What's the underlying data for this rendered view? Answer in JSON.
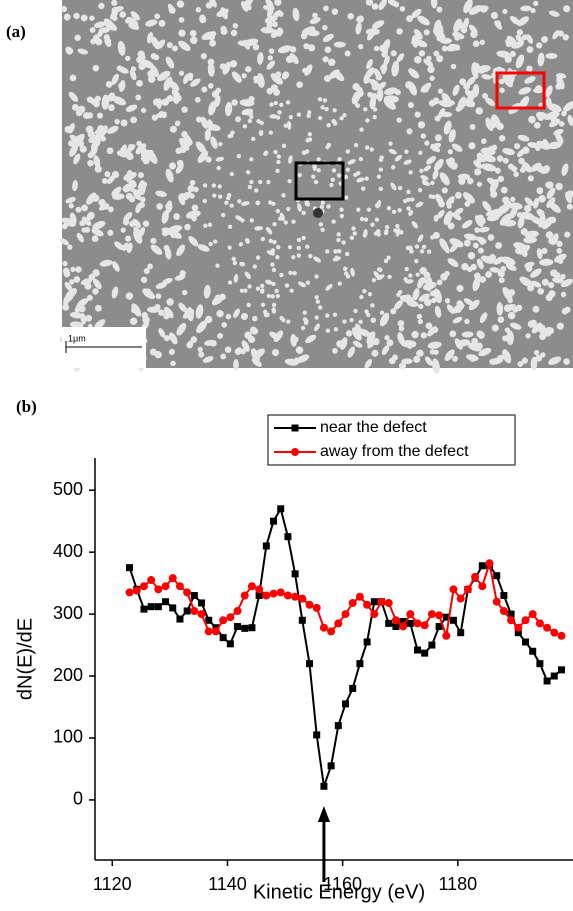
{
  "figure_labels": {
    "a": "(a)",
    "b": "(b)"
  },
  "sem_image": {
    "scale_bar": "1μm"
  },
  "chart_data": {
    "type": "line",
    "y_label": "dN(E)/dE",
    "x_label": "Kinetic Energy (eV)",
    "x": [
      1123,
      1124.25,
      1125.5,
      1126.75,
      1128,
      1129.25,
      1130.5,
      1131.75,
      1133,
      1134.25,
      1135.5,
      1136.75,
      1138,
      1139.25,
      1140.5,
      1141.75,
      1143,
      1144.25,
      1145.5,
      1146.75,
      1148,
      1149.25,
      1150.5,
      1151.75,
      1153,
      1154.25,
      1155.5,
      1156.75,
      1158,
      1159.25,
      1160.5,
      1161.75,
      1163,
      1164.25,
      1165.5,
      1166.75,
      1168,
      1169.25,
      1170.5,
      1171.75,
      1173,
      1174.25,
      1175.5,
      1176.75,
      1178,
      1179.25,
      1180.5,
      1181.75,
      1183,
      1184.25,
      1185.5,
      1186.75,
      1188,
      1189.25,
      1190.5,
      1191.75,
      1193,
      1194.25,
      1195.5,
      1196.75,
      1198
    ],
    "series": [
      {
        "name": "near the defect",
        "color": "#000000",
        "marker": "square",
        "values": [
          375,
          340,
          308,
          312,
          312,
          320,
          310,
          292,
          305,
          330,
          318,
          290,
          278,
          262,
          252,
          280,
          277,
          278,
          330,
          410,
          450,
          470,
          425,
          365,
          290,
          220,
          105,
          22,
          55,
          120,
          155,
          180,
          220,
          255,
          320,
          320,
          285,
          280,
          288,
          285,
          242,
          237,
          250,
          280,
          295,
          290,
          270,
          340,
          358,
          378,
          378,
          362,
          330,
          300,
          270,
          255,
          240,
          220,
          192,
          200,
          210
        ]
      },
      {
        "name": "away from the defect",
        "color": "#ff0000",
        "marker": "circle",
        "values": [
          335,
          338,
          345,
          355,
          340,
          345,
          358,
          345,
          335,
          305,
          300,
          272,
          272,
          290,
          295,
          305,
          330,
          345,
          340,
          330,
          333,
          335,
          330,
          328,
          325,
          315,
          310,
          278,
          272,
          285,
          300,
          318,
          328,
          315,
          300,
          320,
          318,
          290,
          280,
          300,
          285,
          282,
          300,
          298,
          265,
          340,
          325,
          340,
          360,
          345,
          382,
          320,
          305,
          290,
          278,
          290,
          300,
          285,
          278,
          270,
          265
        ]
      }
    ],
    "xlim": [
      1117,
      1200
    ],
    "ylim": [
      -97,
      552
    ],
    "xticks": [
      1120,
      1140,
      1160,
      1180
    ],
    "yticks": [
      0,
      100,
      200,
      300,
      400,
      500
    ],
    "legend": "top-right"
  }
}
